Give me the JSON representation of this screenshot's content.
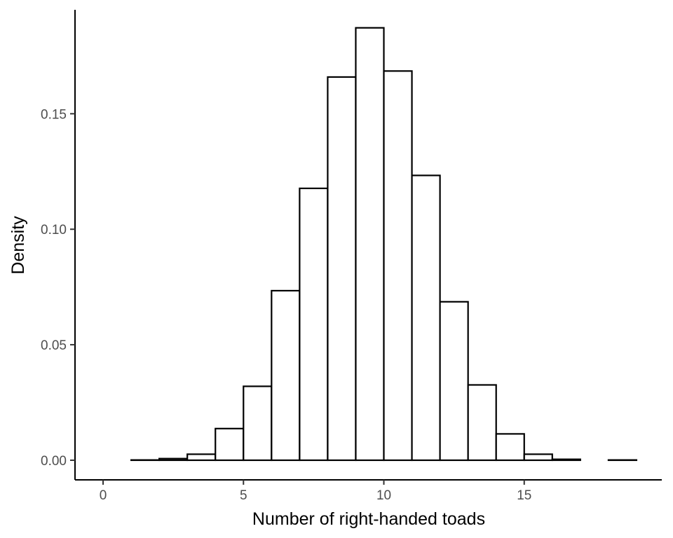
{
  "chart_data": {
    "type": "bar",
    "xlabel": "Number of right-handed toads",
    "ylabel": "Density",
    "xlim": [
      -1,
      19.9
    ],
    "ylim": [
      -0.0085,
      0.195
    ],
    "xticks": [
      0,
      5,
      10,
      15
    ],
    "xtick_labels": [
      "0",
      "5",
      "10",
      "15"
    ],
    "yticks": [
      0.0,
      0.05,
      0.1,
      0.15
    ],
    "ytick_labels": [
      "0.00",
      "0.05",
      "0.10",
      "0.15"
    ],
    "bin_width": 1,
    "bins": [
      {
        "start": 0,
        "end": 1,
        "value": 0.0
      },
      {
        "start": 1,
        "end": 2,
        "value": 0.0001
      },
      {
        "start": 2,
        "end": 3,
        "value": 0.0007
      },
      {
        "start": 3,
        "end": 4,
        "value": 0.0026
      },
      {
        "start": 4,
        "end": 5,
        "value": 0.0137
      },
      {
        "start": 5,
        "end": 6,
        "value": 0.032
      },
      {
        "start": 6,
        "end": 7,
        "value": 0.0734
      },
      {
        "start": 7,
        "end": 8,
        "value": 0.1177
      },
      {
        "start": 8,
        "end": 9,
        "value": 0.1659
      },
      {
        "start": 9,
        "end": 10,
        "value": 0.1872
      },
      {
        "start": 10,
        "end": 11,
        "value": 0.1685
      },
      {
        "start": 11,
        "end": 12,
        "value": 0.1233
      },
      {
        "start": 12,
        "end": 13,
        "value": 0.0686
      },
      {
        "start": 13,
        "end": 14,
        "value": 0.0326
      },
      {
        "start": 14,
        "end": 15,
        "value": 0.0114
      },
      {
        "start": 15,
        "end": 16,
        "value": 0.0026
      },
      {
        "start": 16,
        "end": 17,
        "value": 0.0004
      },
      {
        "start": 17,
        "end": 18,
        "value": 0.0
      },
      {
        "start": 18,
        "end": 19,
        "value": 0.0001
      }
    ],
    "grid": false,
    "bar_fill": "#ffffff",
    "bar_stroke": "#000000"
  }
}
